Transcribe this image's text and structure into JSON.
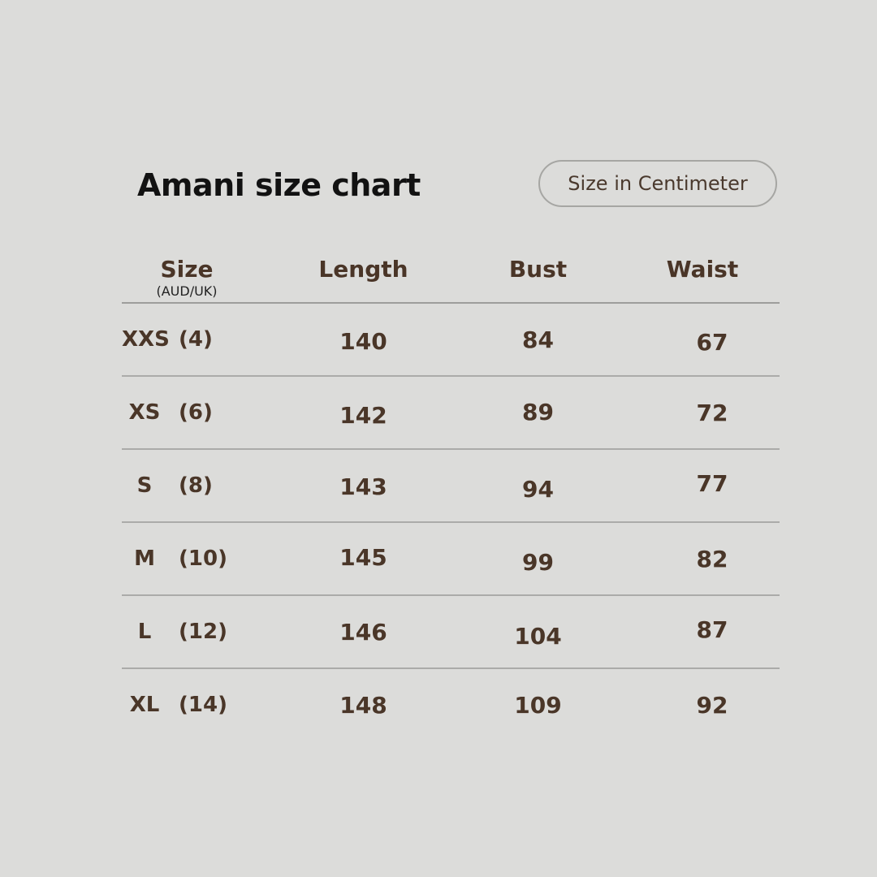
{
  "chart_data": {
    "type": "table",
    "title": "Amani size chart",
    "unit_button_label": "Size in Centimeter",
    "unit": "centimeter",
    "headers": {
      "size": "Size",
      "size_sub": "(AUD/UK)",
      "length": "Length",
      "bust": "Bust",
      "waist": "Waist"
    },
    "rows": [
      {
        "size_code": "XXS",
        "aud_uk": "(4)",
        "length": "140",
        "bust": "84",
        "waist": "67"
      },
      {
        "size_code": "XS",
        "aud_uk": "(6)",
        "length": "142",
        "bust": "89",
        "waist": "72"
      },
      {
        "size_code": "S",
        "aud_uk": "(8)",
        "length": "143",
        "bust": "94",
        "waist": "77"
      },
      {
        "size_code": "M",
        "aud_uk": "(10)",
        "length": "145",
        "bust": "99",
        "waist": "82"
      },
      {
        "size_code": "L",
        "aud_uk": "(12)",
        "length": "146",
        "bust": "104",
        "waist": "87"
      },
      {
        "size_code": "XL",
        "aud_uk": "(14)",
        "length": "148",
        "bust": "109",
        "waist": "92"
      }
    ]
  },
  "colors": {
    "background": "#dcdcda",
    "title_text": "#121212",
    "table_text": "#4a3628",
    "divider": "#ababa9",
    "button_border": "#a6a6a3"
  }
}
